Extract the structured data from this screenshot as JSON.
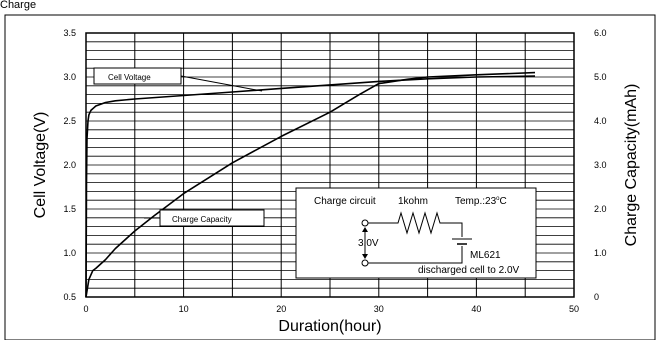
{
  "header": {
    "label": "Charge"
  },
  "chart_data": {
    "type": "line",
    "xlabel": "Duration(hour)",
    "ylabel_left": "Cell Voltage(V)",
    "ylabel_right": "Charge Capacity(mAh)",
    "xlim": [
      0,
      50
    ],
    "ylim_left": [
      0.5,
      3.5
    ],
    "ylim_right": [
      0,
      6.0
    ],
    "x_ticks": [
      0,
      10,
      20,
      30,
      40,
      50
    ],
    "y_left_ticks": [
      "0.5",
      "1.0",
      "1.5",
      "2.0",
      "2.5",
      "3.0",
      "3.5"
    ],
    "y_right_ticks": [
      "0",
      "1.0",
      "2.0",
      "3.0",
      "4.0",
      "5.0",
      "6.0"
    ],
    "grid": true,
    "series": [
      {
        "name": "Cell Voltage",
        "axis": "left",
        "x": [
          0,
          0.05,
          0.1,
          0.2,
          0.3,
          0.5,
          0.8,
          1,
          2,
          3,
          5,
          10,
          15,
          20,
          25,
          30,
          35,
          40,
          46
        ],
        "y": [
          0.5,
          1.8,
          2.3,
          2.5,
          2.57,
          2.62,
          2.65,
          2.67,
          2.71,
          2.73,
          2.75,
          2.79,
          2.83,
          2.87,
          2.91,
          2.95,
          2.98,
          3.0,
          3.01
        ]
      },
      {
        "name": "Charge Capacity",
        "axis": "right",
        "x": [
          0,
          0.3,
          0.7,
          1,
          2,
          3,
          5,
          7,
          10,
          15,
          20,
          25,
          28,
          30,
          33,
          35,
          40,
          46
        ],
        "y": [
          0,
          0.4,
          0.6,
          0.65,
          0.85,
          1.1,
          1.5,
          1.85,
          2.35,
          3.05,
          3.65,
          4.2,
          4.6,
          4.85,
          4.95,
          5.0,
          5.05,
          5.1
        ]
      }
    ],
    "annotations": {
      "cell_voltage_label": "Cell Voltage",
      "charge_capacity_label": "Charge Capacity"
    },
    "inset": {
      "title": "Charge circuit",
      "resistor": "1kohm",
      "temp": "Temp.:23",
      "temp_degree": "o",
      "temp_unit": "C",
      "voltage": "3.0V",
      "cell": "ML621",
      "note": "discharged cell to 2.0V"
    }
  }
}
